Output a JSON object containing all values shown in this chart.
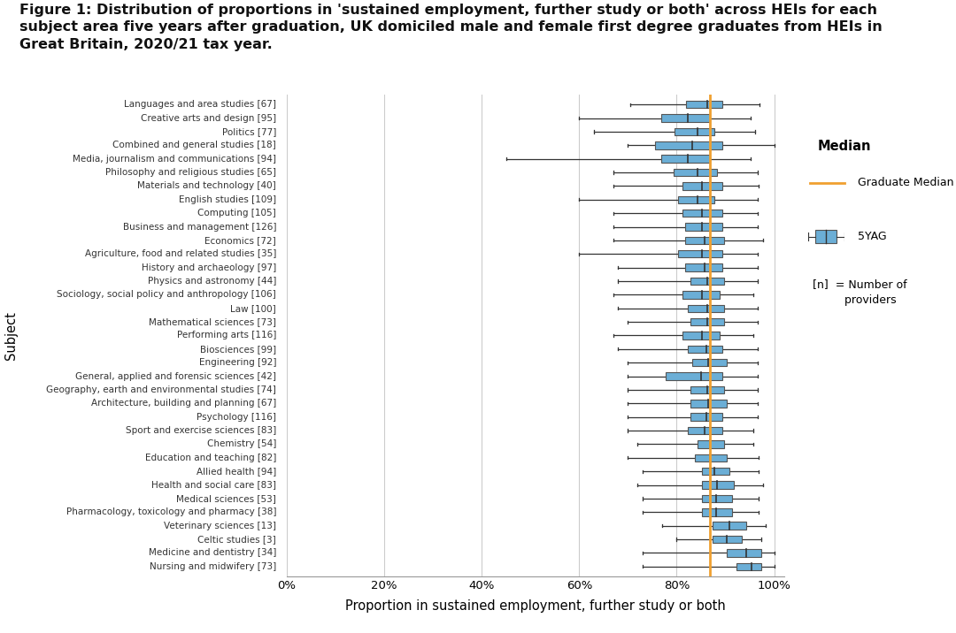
{
  "title_line1": "Figure 1: Distribution of proportions in 'sustained employment, further study or both' across HEIs for each",
  "title_line2": "subject area five years after graduation, UK domiciled male and female first degree graduates from HEIs in",
  "title_line3": "Great Britain, 2020/21 tax year.",
  "xlabel": "Proportion in sustained employment, further study or both",
  "ylabel": "Subject",
  "graduate_median": 0.868,
  "subjects": [
    "Languages and area studies [67]",
    "Creative arts and design [95]",
    "Politics [77]",
    "Combined and general studies [18]",
    "Media, journalism and communications [94]",
    "Philosophy and religious studies [65]",
    "Materials and technology [40]",
    "English studies [109]",
    "Computing [105]",
    "Business and management [126]",
    "Economics [72]",
    "Agriculture, food and related studies [35]",
    "History and archaeology [97]",
    "Physics and astronomy [44]",
    "Sociology, social policy and anthropology [106]",
    "Law [100]",
    "Mathematical sciences [73]",
    "Performing arts [116]",
    "Biosciences [99]",
    "Engineering [92]",
    "General, applied and forensic sciences [42]",
    "Geography, earth and environmental studies [74]",
    "Architecture, building and planning [67]",
    "Psychology [116]",
    "Sport and exercise sciences [83]",
    "Chemistry [54]",
    "Education and teaching [82]",
    "Allied health [94]",
    "Health and social care [83]",
    "Medical sciences [53]",
    "Pharmacology, toxicology and pharmacy [38]",
    "Veterinary sciences [13]",
    "Celtic studies [3]",
    "Medicine and dentistry [34]",
    "Nursing and midwifery [73]"
  ],
  "box_data": [
    {
      "whislo": 0.705,
      "q1": 0.82,
      "med": 0.862,
      "q3": 0.893,
      "whishi": 0.97
    },
    {
      "whislo": 0.6,
      "q1": 0.768,
      "med": 0.822,
      "q3": 0.868,
      "whishi": 0.952
    },
    {
      "whislo": 0.63,
      "q1": 0.795,
      "med": 0.842,
      "q3": 0.878,
      "whishi": 0.96
    },
    {
      "whislo": 0.7,
      "q1": 0.755,
      "med": 0.832,
      "q3": 0.893,
      "whishi": 1.0
    },
    {
      "whislo": 0.45,
      "q1": 0.768,
      "med": 0.822,
      "q3": 0.868,
      "whishi": 0.952
    },
    {
      "whislo": 0.67,
      "q1": 0.793,
      "med": 0.842,
      "q3": 0.883,
      "whishi": 0.967
    },
    {
      "whislo": 0.67,
      "q1": 0.812,
      "med": 0.852,
      "q3": 0.893,
      "whishi": 0.968
    },
    {
      "whislo": 0.6,
      "q1": 0.802,
      "med": 0.842,
      "q3": 0.878,
      "whishi": 0.967
    },
    {
      "whislo": 0.67,
      "q1": 0.812,
      "med": 0.852,
      "q3": 0.893,
      "whishi": 0.967
    },
    {
      "whislo": 0.67,
      "q1": 0.818,
      "med": 0.852,
      "q3": 0.893,
      "whishi": 0.967
    },
    {
      "whislo": 0.67,
      "q1": 0.818,
      "med": 0.858,
      "q3": 0.898,
      "whishi": 0.978
    },
    {
      "whislo": 0.6,
      "q1": 0.802,
      "med": 0.852,
      "q3": 0.893,
      "whishi": 0.967
    },
    {
      "whislo": 0.68,
      "q1": 0.818,
      "med": 0.858,
      "q3": 0.893,
      "whishi": 0.967
    },
    {
      "whislo": 0.68,
      "q1": 0.828,
      "med": 0.862,
      "q3": 0.898,
      "whishi": 0.967
    },
    {
      "whislo": 0.67,
      "q1": 0.812,
      "med": 0.852,
      "q3": 0.888,
      "whishi": 0.958
    },
    {
      "whislo": 0.68,
      "q1": 0.822,
      "med": 0.862,
      "q3": 0.898,
      "whishi": 0.967
    },
    {
      "whislo": 0.7,
      "q1": 0.828,
      "med": 0.862,
      "q3": 0.898,
      "whishi": 0.967
    },
    {
      "whislo": 0.67,
      "q1": 0.812,
      "med": 0.852,
      "q3": 0.888,
      "whishi": 0.958
    },
    {
      "whislo": 0.68,
      "q1": 0.822,
      "med": 0.86,
      "q3": 0.893,
      "whishi": 0.967
    },
    {
      "whislo": 0.7,
      "q1": 0.832,
      "med": 0.865,
      "q3": 0.903,
      "whishi": 0.967
    },
    {
      "whislo": 0.7,
      "q1": 0.778,
      "med": 0.85,
      "q3": 0.893,
      "whishi": 0.967
    },
    {
      "whislo": 0.7,
      "q1": 0.828,
      "med": 0.862,
      "q3": 0.898,
      "whishi": 0.967
    },
    {
      "whislo": 0.7,
      "q1": 0.828,
      "med": 0.865,
      "q3": 0.903,
      "whishi": 0.967
    },
    {
      "whislo": 0.7,
      "q1": 0.828,
      "med": 0.86,
      "q3": 0.893,
      "whishi": 0.967
    },
    {
      "whislo": 0.7,
      "q1": 0.822,
      "med": 0.858,
      "q3": 0.893,
      "whishi": 0.958
    },
    {
      "whislo": 0.72,
      "q1": 0.842,
      "med": 0.868,
      "q3": 0.898,
      "whishi": 0.958
    },
    {
      "whislo": 0.7,
      "q1": 0.838,
      "med": 0.868,
      "q3": 0.903,
      "whishi": 0.968
    },
    {
      "whislo": 0.73,
      "q1": 0.852,
      "med": 0.878,
      "q3": 0.908,
      "whishi": 0.968
    },
    {
      "whislo": 0.72,
      "q1": 0.852,
      "med": 0.883,
      "q3": 0.918,
      "whishi": 0.978
    },
    {
      "whislo": 0.73,
      "q1": 0.852,
      "med": 0.88,
      "q3": 0.913,
      "whishi": 0.968
    },
    {
      "whislo": 0.73,
      "q1": 0.852,
      "med": 0.88,
      "q3": 0.913,
      "whishi": 0.968
    },
    {
      "whislo": 0.77,
      "q1": 0.873,
      "med": 0.908,
      "q3": 0.943,
      "whishi": 0.983
    },
    {
      "whislo": 0.8,
      "q1": 0.873,
      "med": 0.903,
      "q3": 0.933,
      "whishi": 0.973
    },
    {
      "whislo": 0.73,
      "q1": 0.903,
      "med": 0.943,
      "q3": 0.973,
      "whishi": 1.0
    },
    {
      "whislo": 0.73,
      "q1": 0.923,
      "med": 0.953,
      "q3": 0.973,
      "whishi": 1.0
    }
  ],
  "box_color": "#6baed6",
  "box_edge_color": "#555555",
  "median_line_color": "#333333",
  "whisker_color": "#333333",
  "graduate_median_color": "#f0a030",
  "grid_color": "#cccccc",
  "background_color": "#ffffff",
  "xtick_labels": [
    "0%",
    "20%",
    "40%",
    "60%",
    "80%",
    "100%"
  ],
  "xtick_values": [
    0.0,
    0.2,
    0.4,
    0.6,
    0.8,
    1.0
  ],
  "xlim": [
    0.0,
    1.02
  ]
}
